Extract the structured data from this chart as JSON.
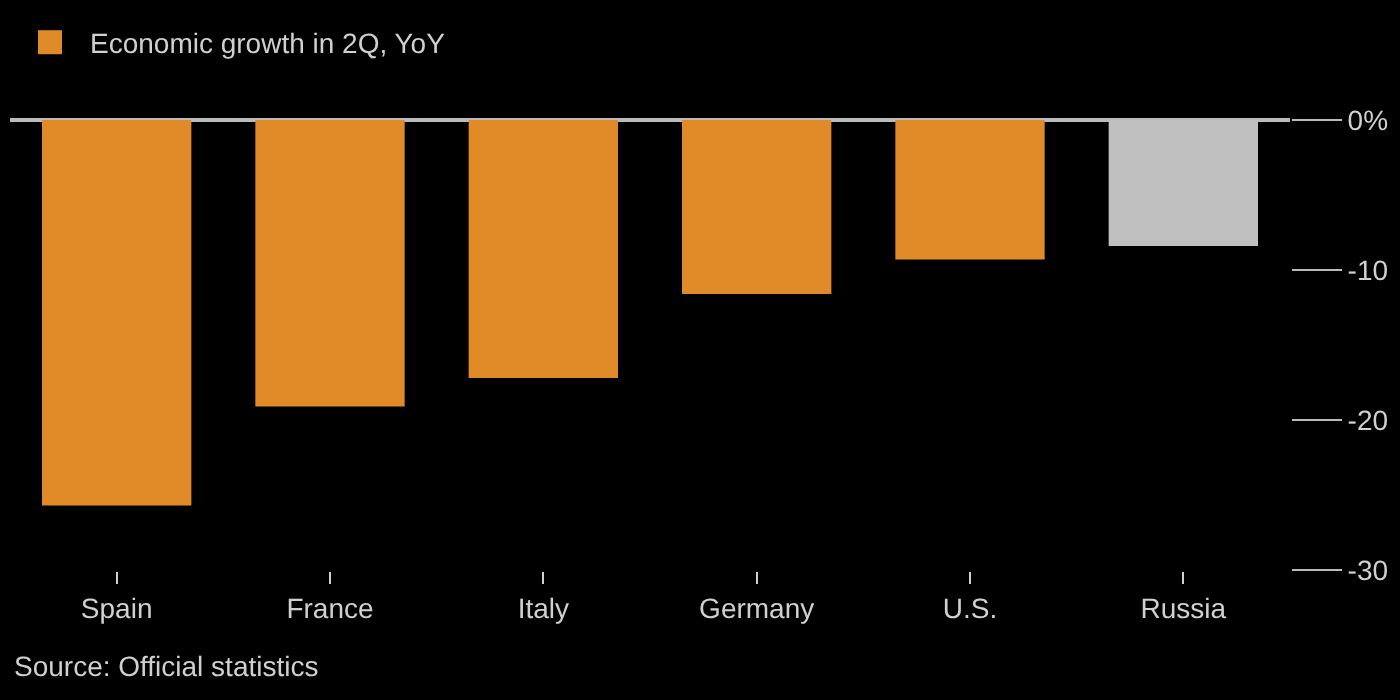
{
  "chart_data": {
    "type": "bar",
    "categories": [
      "Spain",
      "France",
      "Italy",
      "Germany",
      "U.S.",
      "Russia"
    ],
    "series": [
      {
        "name": "Economic growth in 2Q, YoY",
        "colors": [
          "#e08b27",
          "#e08b27",
          "#e08b27",
          "#e08b27",
          "#e08b27",
          "#c0c0c0"
        ],
        "values": [
          -25.7,
          -19.1,
          -17.2,
          -11.6,
          -9.3,
          -8.4
        ]
      }
    ],
    "ylim": [
      -30,
      0
    ],
    "yticks": [
      {
        "value": 0,
        "label": "0%"
      },
      -10,
      -20,
      -30
    ],
    "grid": false,
    "legend": "top left",
    "annotations": [
      "Source: Official statistics"
    ]
  }
}
